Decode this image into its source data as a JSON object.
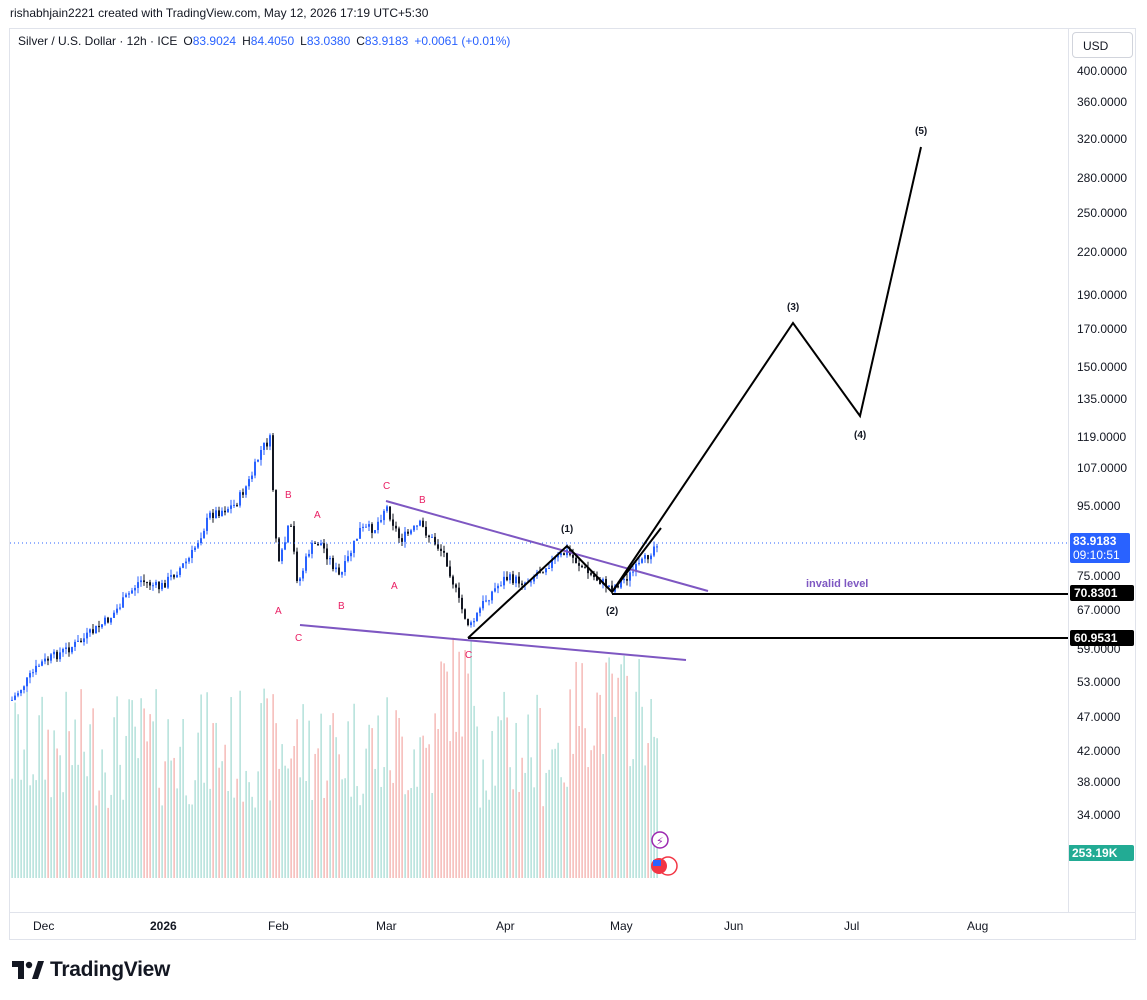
{
  "header": {
    "text": "rishabhjain2221 created with TradingView.com, May 12, 2026 17:19 UTC+5:30"
  },
  "symbol": {
    "name": "Silver / U.S. Dollar · 12h · ICE",
    "o_label": "O",
    "o_value": "83.9024",
    "h_label": "H",
    "h_value": "84.4050",
    "l_label": "L",
    "l_value": "83.0380",
    "c_label": "C",
    "c_value": "83.9183",
    "change": "+0.0061 (+0.01%)"
  },
  "currency": "USD",
  "price_axis": [
    "400.0000",
    "360.0000",
    "320.0000",
    "280.0000",
    "250.0000",
    "220.0000",
    "190.0000",
    "170.0000",
    "150.0000",
    "135.0000",
    "119.0000",
    "107.0000",
    "95.0000",
    "75.0000",
    "67.0000",
    "59.0000",
    "53.0000",
    "47.0000",
    "42.0000",
    "38.0000",
    "34.0000"
  ],
  "time_axis": [
    "Dec",
    "2026",
    "Feb",
    "Mar",
    "Apr",
    "May",
    "Jun",
    "Jul",
    "Aug"
  ],
  "last_price": {
    "value": "83.9183",
    "countdown": "09:10:51",
    "color": "#2962ff"
  },
  "levels": [
    {
      "value": "70.8301",
      "label": "invalid level"
    },
    {
      "value": "60.9531"
    }
  ],
  "volume_tag": {
    "value": "253.19K",
    "color": "#22ab94"
  },
  "wave_labels": {
    "correction": [
      "A",
      "B",
      "C",
      "A",
      "B",
      "C",
      "A",
      "B",
      "C",
      "A",
      "B",
      "C"
    ],
    "impulse": [
      "(1)",
      "(2)",
      "(3)",
      "(4)",
      "(5)"
    ]
  },
  "colors": {
    "up": "#2962ff",
    "down": "#131722",
    "trendline": "#7e57c2",
    "wave": "#000000",
    "correction_label": "#e91e63",
    "vol_up": "#9fd8d0",
    "vol_down": "#f3a7a4"
  },
  "chart_data": {
    "type": "candlestick",
    "symbol": "Silver / U.S. Dollar",
    "interval": "12h",
    "log_scale": true,
    "last": 83.9183,
    "open": 83.9024,
    "high": 84.405,
    "low": 83.038,
    "support_levels": [
      70.8301,
      60.9531
    ],
    "projection": [
      {
        "wave": "(1)",
        "price": 81.5
      },
      {
        "wave": "(2)",
        "price": 70.8
      },
      {
        "wave": "(3)",
        "price": 175
      },
      {
        "wave": "(4)",
        "price": 127
      },
      {
        "wave": "(5)",
        "price": 312
      }
    ]
  },
  "brand": {
    "name": "TradingView"
  }
}
